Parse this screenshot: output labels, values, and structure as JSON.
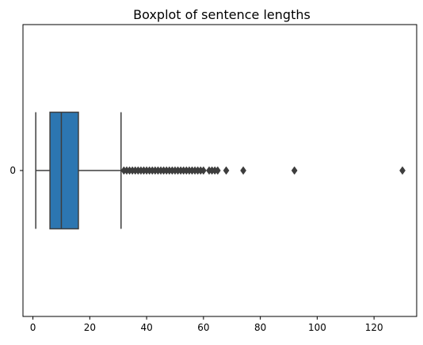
{
  "chart_data": {
    "type": "boxplot",
    "orientation": "horizontal",
    "title": "Boxplot of sentence lengths",
    "xlabel": "",
    "ylabel": "",
    "xlim": [
      -3.5,
      135
    ],
    "x_ticks": [
      0,
      20,
      40,
      60,
      80,
      100,
      120
    ],
    "y_ticks": [
      "0"
    ],
    "grid": false,
    "box_color": "#2c76b1",
    "line_color": "#3d3d3d",
    "outlier_color": "#3d3d3d",
    "boxes": [
      {
        "category": "0",
        "whisker_low": 1,
        "q1": 6,
        "median": 10,
        "q3": 16,
        "whisker_high": 31,
        "outliers": [
          32,
          33,
          34,
          35,
          36,
          37,
          38,
          39,
          40,
          41,
          42,
          43,
          44,
          45,
          46,
          47,
          48,
          49,
          50,
          51,
          52,
          53,
          54,
          55,
          56,
          57,
          58,
          59,
          60,
          62,
          63,
          64,
          65,
          68,
          74,
          92,
          130
        ]
      }
    ]
  }
}
